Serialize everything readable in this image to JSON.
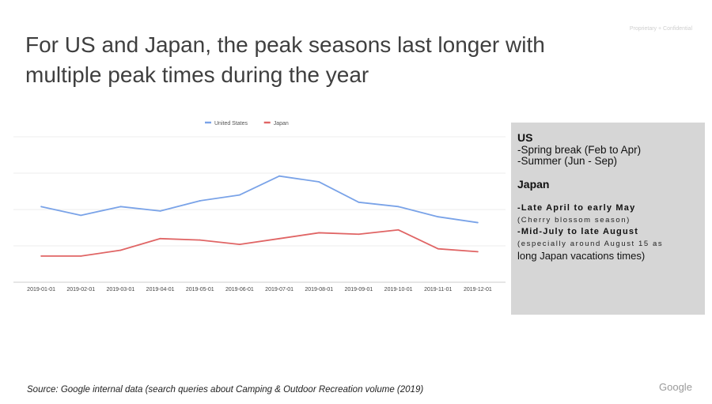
{
  "header": {
    "confidential": "Proprietary + Confidential",
    "title": "For US and Japan, the peak seasons last longer with multiple peak times during the year"
  },
  "chart_data": {
    "type": "line",
    "title": "",
    "xlabel": "",
    "ylabel": "",
    "ylim": [
      0,
      100
    ],
    "grid": true,
    "legend_position": "top-center",
    "categories": [
      "2019-01-01",
      "2019-02-01",
      "2019-03-01",
      "2019-04-01",
      "2019-05-01",
      "2019-06-01",
      "2019-07-01",
      "2019-08-01",
      "2019-09-01",
      "2019-10-01",
      "2019-11-01",
      "2019-12-01"
    ],
    "series": [
      {
        "name": "United States",
        "color": "#7aa3e8",
        "values": [
          52,
          46,
          52,
          49,
          56,
          60,
          73,
          69,
          55,
          52,
          45,
          41
        ]
      },
      {
        "name": "Japan",
        "color": "#e06565",
        "values": [
          18,
          18,
          22,
          30,
          29,
          26,
          30,
          34,
          33,
          36,
          23,
          21
        ]
      }
    ]
  },
  "panel": {
    "us_heading": "US",
    "us_lines": [
      "-Spring break (Feb to Apr)",
      "-Summer (Jun - Sep)"
    ],
    "japan_heading": "Japan",
    "jp_line1": "-Late April to early May",
    "jp_line2": "(Cherry blossom season)",
    "jp_line3": "-Mid-July to late August",
    "jp_line4": "(especially around August 15 as",
    "jp_line5": "long Japan vacations times)"
  },
  "footer": {
    "source": "Source: Google internal data (search queries about Camping & Outdoor Recreation volume (2019)",
    "brand": "Google"
  }
}
